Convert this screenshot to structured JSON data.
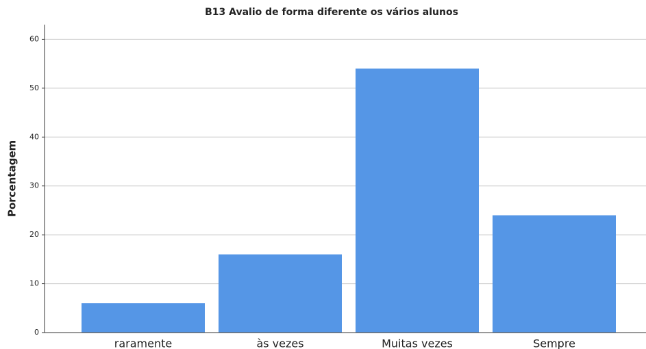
{
  "chart_data": {
    "type": "bar",
    "title": "B13 Avalio de forma diferente os vários alunos",
    "ylabel": "Porcentagem",
    "categories": [
      "raramente",
      "às vezes",
      "Muitas vezes",
      "Sempre"
    ],
    "values": [
      6,
      16,
      54,
      24
    ],
    "color": "#5596e6",
    "ylim": [
      0,
      63
    ],
    "yticks": [
      0,
      10,
      20,
      30,
      40,
      50,
      60
    ],
    "grid": true
  }
}
